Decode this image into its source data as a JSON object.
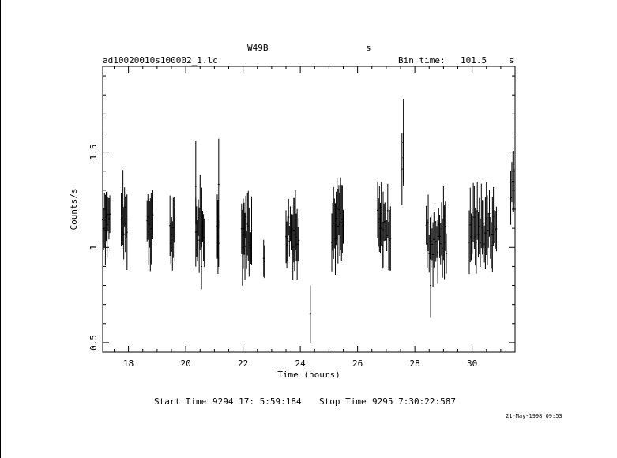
{
  "header": {
    "object": "W49B",
    "units_top": "s",
    "file": "ad10020010s100002_1.lc",
    "bin_label": "Bin time:",
    "bin_value": "101.5",
    "bin_unit": "s"
  },
  "footer": {
    "start_label": "Start Time",
    "start_value": "9294 17: 5:59:184",
    "stop_label": "Stop Time",
    "stop_value": "9295  7:30:22:587",
    "timestamp": "21-May-1998 09:53"
  },
  "chart_data": {
    "type": "scatter",
    "xlabel": "Time (hours)",
    "ylabel": "Counts/s",
    "xlim": [
      17.1,
      31.5
    ],
    "ylim": [
      0.45,
      1.95
    ],
    "xticks": [
      18,
      20,
      22,
      24,
      26,
      28,
      30
    ],
    "yticks": [
      0.5,
      1,
      1.5
    ],
    "xtick_labels": [
      "18",
      "20",
      "22",
      "24",
      "26",
      "28",
      "30"
    ],
    "ytick_labels": [
      "0.5",
      "1",
      "1.5"
    ],
    "segments": [
      {
        "x0": 17.1,
        "x1": 17.35,
        "y0": 1.08,
        "y1": 1.22,
        "n": 9
      },
      {
        "x0": 17.75,
        "x1": 17.95,
        "y0": 1.05,
        "y1": 1.22,
        "n": 8
      },
      {
        "x0": 18.65,
        "x1": 18.85,
        "y0": 1.05,
        "y1": 1.25,
        "n": 8
      },
      {
        "x0": 19.45,
        "x1": 19.62,
        "y0": 1.0,
        "y1": 1.15,
        "n": 7
      },
      {
        "x0": 20.35,
        "x1": 20.65,
        "y0": 0.97,
        "y1": 1.22,
        "n": 11
      },
      {
        "x0": 21.1,
        "x1": 21.15,
        "y0": 1.02,
        "y1": 1.15,
        "n": 3
      },
      {
        "x0": 21.95,
        "x1": 22.3,
        "y0": 0.98,
        "y1": 1.18,
        "n": 13
      },
      {
        "x0": 22.72,
        "x1": 22.75,
        "y0": 0.9,
        "y1": 0.95,
        "n": 2
      },
      {
        "x0": 23.5,
        "x1": 23.95,
        "y0": 1.0,
        "y1": 1.2,
        "n": 16
      },
      {
        "x0": 25.1,
        "x1": 25.5,
        "y0": 1.02,
        "y1": 1.22,
        "n": 14
      },
      {
        "x0": 26.7,
        "x1": 27.15,
        "y0": 1.0,
        "y1": 1.2,
        "n": 15
      },
      {
        "x0": 27.55,
        "x1": 27.6,
        "y0": 1.35,
        "y1": 1.55,
        "n": 2
      },
      {
        "x0": 28.4,
        "x1": 29.1,
        "y0": 0.95,
        "y1": 1.15,
        "n": 22
      },
      {
        "x0": 29.9,
        "x1": 30.85,
        "y0": 1.0,
        "y1": 1.2,
        "n": 28
      },
      {
        "x0": 31.35,
        "x1": 31.5,
        "y0": 1.2,
        "y1": 1.45,
        "n": 5
      }
    ],
    "points": [
      {
        "x": 24.35,
        "y": 0.65,
        "lo": 0.5,
        "hi": 0.8
      },
      {
        "x": 27.6,
        "y": 1.55,
        "lo": 1.32,
        "hi": 1.78
      },
      {
        "x": 20.35,
        "y": 1.32,
        "lo": 1.12,
        "hi": 1.56
      },
      {
        "x": 21.15,
        "y": 1.33,
        "lo": 1.1,
        "hi": 1.57
      },
      {
        "x": 28.55,
        "y": 0.8,
        "lo": 0.63,
        "hi": 0.95
      },
      {
        "x": 20.55,
        "y": 0.9,
        "lo": 0.78,
        "hi": 1.02
      }
    ]
  }
}
